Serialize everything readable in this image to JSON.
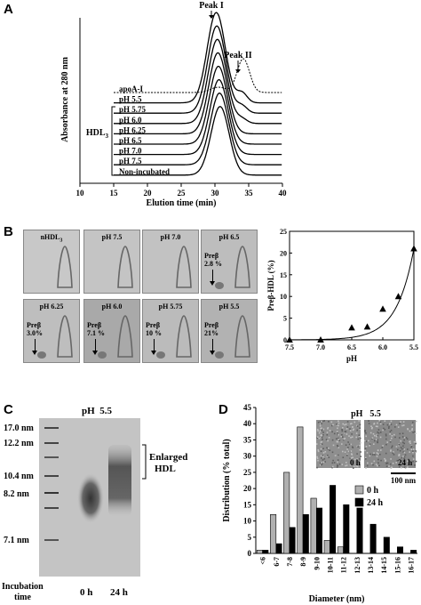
{
  "panels": {
    "A": "A",
    "B": "B",
    "C": "C",
    "D": "D"
  },
  "panelA": {
    "xlabel": "Elution time (min)",
    "ylabel": "Absorbance at 280 nm",
    "peak1": "Peak I",
    "peak2": "Peak II",
    "hdl_label": "HDL",
    "hdl_sub": "3",
    "traces": [
      "apoA-I",
      "pH 5.5",
      "pH 5.75",
      "pH 6.0",
      "pH 6.25",
      "pH 6.5",
      "pH 7.0",
      "pH 7.5",
      "Non-incubated"
    ],
    "xticks": [
      "10",
      "15",
      "20",
      "25",
      "30",
      "35",
      "40"
    ]
  },
  "panelB": {
    "gels": [
      {
        "label": "nHDL",
        "sub": "3",
        "pre": "",
        "pre2": ""
      },
      {
        "label": "pH 7.5",
        "sub": "",
        "pre": "",
        "pre2": ""
      },
      {
        "label": "pH 7.0",
        "sub": "",
        "pre": "",
        "pre2": ""
      },
      {
        "label": "pH 6.5",
        "sub": "",
        "pre": "Preβ",
        "pre2": "2.8 %"
      },
      {
        "label": "pH 6.25",
        "sub": "",
        "pre": "Preβ",
        "pre2": "3.0%"
      },
      {
        "label": "pH 6.0",
        "sub": "",
        "pre": "Preβ",
        "pre2": "7.1 %"
      },
      {
        "label": "pH 5.75",
        "sub": "",
        "pre": "Preβ",
        "pre2": "10 %"
      },
      {
        "label": "pH 5.5",
        "sub": "",
        "pre": "Preβ",
        "pre2": "21%"
      }
    ]
  },
  "panelC": {
    "title_left": "pH",
    "title_right": "5.5",
    "markers": [
      "17.0 nm",
      "12.2 nm",
      "10.4 nm",
      "8.2 nm",
      "7.1 nm"
    ],
    "bracket_label_1": "Enlarged",
    "bracket_label_2": "HDL",
    "incubation_1": "Incubation",
    "incubation_2": "time",
    "lane1": "0 h",
    "lane2": "24 h"
  },
  "panelD": {
    "inset_title_left": "pH",
    "inset_title_right": "5.5",
    "inset_0h": "0 h",
    "inset_24h": "24 h",
    "scalebar": "100 nm"
  },
  "chart_data": [
    {
      "type": "scatter",
      "panel": "B",
      "xlabel": "pH",
      "ylabel": "Preβ-HDL (%)",
      "x": [
        7.5,
        7.0,
        6.5,
        6.25,
        6.0,
        5.75,
        5.5
      ],
      "values": [
        0,
        0,
        2.8,
        3.0,
        7.1,
        10,
        21
      ],
      "xticks": [
        "7.5",
        "7.0",
        "6.5",
        "6.0",
        "5.5"
      ],
      "xtick_values": [
        7.5,
        7.0,
        6.5,
        6.0,
        5.5
      ],
      "yticks": [
        "0",
        "5",
        "10",
        "15",
        "20",
        "25"
      ],
      "ylim": [
        0,
        25
      ],
      "xlim": [
        7.5,
        5.5
      ],
      "fit": "exponential"
    },
    {
      "type": "bar",
      "panel": "D",
      "xlabel": "Diameter (nm)",
      "ylabel": "Distribution (% total)",
      "categories": [
        "<6",
        "6-7",
        "7-8",
        "8-9",
        "9-10",
        "10-11",
        "11-12",
        "12-13",
        "13-14",
        "14-15",
        "15-16",
        "16-17"
      ],
      "series": [
        {
          "name": "0 h",
          "color": "#b0b0b0",
          "values": [
            1,
            12,
            25,
            39,
            17,
            4,
            2,
            0,
            0,
            0,
            0,
            0
          ]
        },
        {
          "name": "24 h",
          "color": "#000000",
          "values": [
            1,
            3,
            8,
            12,
            14,
            21,
            15,
            14,
            9,
            5,
            2,
            1
          ]
        }
      ],
      "yticks": [
        "0",
        "5",
        "10",
        "15",
        "20",
        "25",
        "30",
        "35",
        "40",
        "45"
      ],
      "ylim": [
        0,
        45
      ],
      "legend": "center-right"
    }
  ]
}
